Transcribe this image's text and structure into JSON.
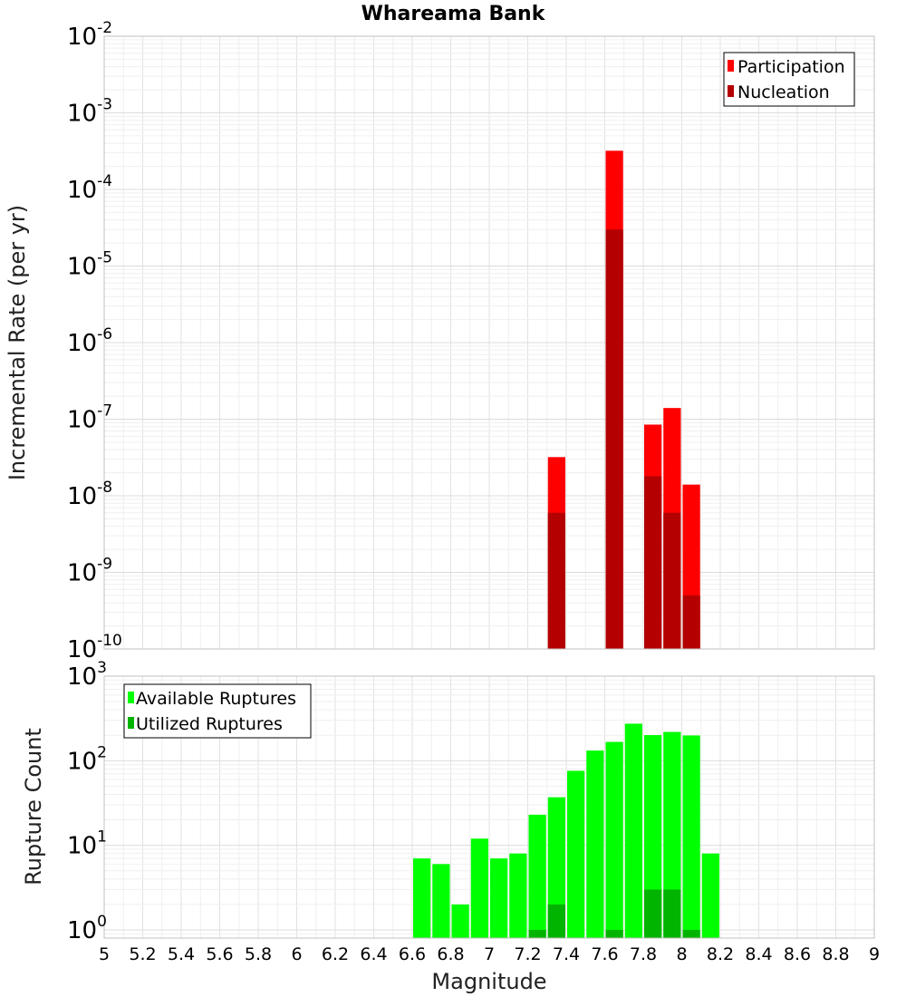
{
  "chart_data": [
    {
      "type": "bar",
      "title": "Whareama Bank",
      "xlabel": "",
      "ylabel": "Incremental Rate (per yr)",
      "yscale": "log",
      "ylim": [
        1e-10,
        0.01
      ],
      "xlim": [
        5,
        9
      ],
      "bin_width": 0.1,
      "grid": true,
      "legend_placement": "top-right",
      "y_tick_labels": [
        {
          "base": "10",
          "exp": "-10"
        },
        {
          "base": "10",
          "exp": "-9"
        },
        {
          "base": "10",
          "exp": "-8"
        },
        {
          "base": "10",
          "exp": "-7"
        },
        {
          "base": "10",
          "exp": "-6"
        },
        {
          "base": "10",
          "exp": "-5"
        },
        {
          "base": "10",
          "exp": "-4"
        },
        {
          "base": "10",
          "exp": "-3"
        },
        {
          "base": "10",
          "exp": "-2"
        }
      ],
      "series": [
        {
          "name": "Participation",
          "color": "#ff0000",
          "points": [
            {
              "x": 7.35,
              "y": 3.2e-08
            },
            {
              "x": 7.65,
              "y": 0.00032
            },
            {
              "x": 7.85,
              "y": 8.5e-08
            },
            {
              "x": 7.95,
              "y": 1.4e-07
            },
            {
              "x": 8.05,
              "y": 1.4e-08
            }
          ]
        },
        {
          "name": "Nucleation",
          "color": "#b40000",
          "points": [
            {
              "x": 7.35,
              "y": 6e-09
            },
            {
              "x": 7.65,
              "y": 3e-05
            },
            {
              "x": 7.85,
              "y": 1.8e-08
            },
            {
              "x": 7.95,
              "y": 6e-09
            },
            {
              "x": 8.05,
              "y": 5e-10
            }
          ]
        }
      ]
    },
    {
      "type": "bar",
      "title": "",
      "xlabel": "Magnitude",
      "ylabel": "Rupture Count",
      "yscale": "log",
      "ylim": [
        0.8,
        1000
      ],
      "xlim": [
        5,
        9
      ],
      "bin_width": 0.1,
      "grid": true,
      "legend_placement": "top-left",
      "x_tick_labels": [
        "5",
        "5.2",
        "5.4",
        "5.6",
        "5.8",
        "6",
        "6.2",
        "6.4",
        "6.6",
        "6.8",
        "7",
        "7.2",
        "7.4",
        "7.6",
        "7.8",
        "8",
        "8.2",
        "8.4",
        "8.6",
        "8.8",
        "9"
      ],
      "y_tick_labels": [
        {
          "base": "10",
          "exp": "0"
        },
        {
          "base": "10",
          "exp": "1"
        },
        {
          "base": "10",
          "exp": "2"
        },
        {
          "base": "10",
          "exp": "3"
        }
      ],
      "series": [
        {
          "name": "Available Ruptures",
          "color": "#00ff00",
          "points": [
            {
              "x": 6.65,
              "y": 7
            },
            {
              "x": 6.75,
              "y": 6
            },
            {
              "x": 6.85,
              "y": 2
            },
            {
              "x": 6.95,
              "y": 12
            },
            {
              "x": 7.05,
              "y": 7
            },
            {
              "x": 7.15,
              "y": 8
            },
            {
              "x": 7.25,
              "y": 23
            },
            {
              "x": 7.35,
              "y": 37
            },
            {
              "x": 7.45,
              "y": 76
            },
            {
              "x": 7.55,
              "y": 132
            },
            {
              "x": 7.65,
              "y": 167
            },
            {
              "x": 7.75,
              "y": 274
            },
            {
              "x": 7.85,
              "y": 201
            },
            {
              "x": 7.95,
              "y": 219
            },
            {
              "x": 8.05,
              "y": 199
            },
            {
              "x": 8.15,
              "y": 8
            }
          ]
        },
        {
          "name": "Utilized Ruptures",
          "color": "#00b400",
          "points": [
            {
              "x": 7.25,
              "y": 1
            },
            {
              "x": 7.35,
              "y": 2
            },
            {
              "x": 7.65,
              "y": 1
            },
            {
              "x": 7.85,
              "y": 3
            },
            {
              "x": 7.95,
              "y": 3
            },
            {
              "x": 8.05,
              "y": 1
            }
          ]
        }
      ]
    }
  ]
}
